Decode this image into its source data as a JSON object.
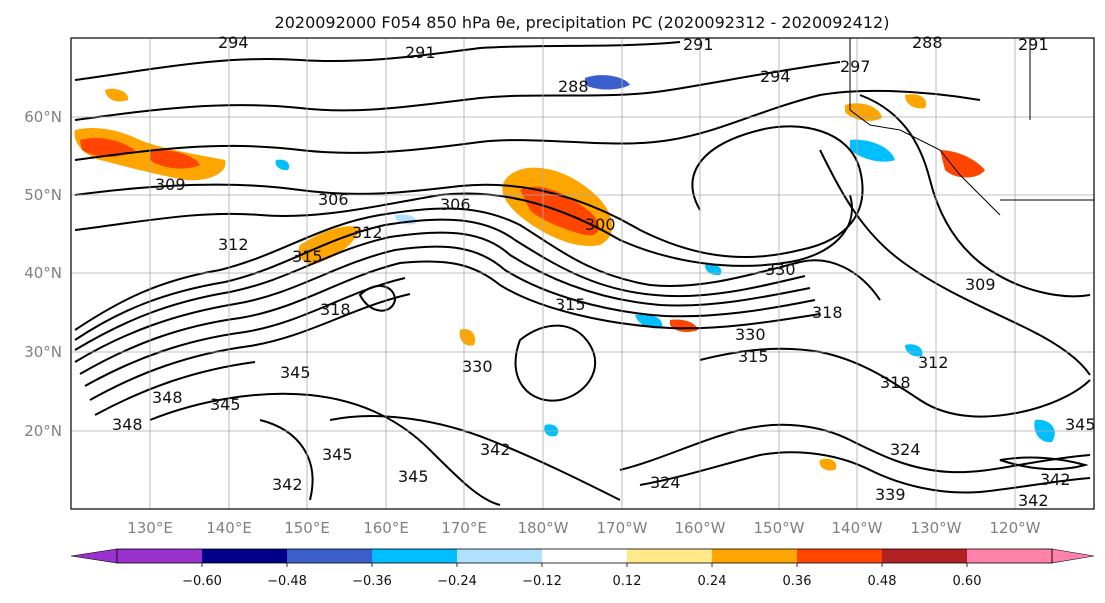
{
  "title": "2020092000 F054 850 hPa θe, precipitation PC (2020092312 - 2020092412)",
  "map": {
    "x_ticks": [
      "130°E",
      "140°E",
      "150°E",
      "160°E",
      "170°E",
      "180°W",
      "170°W",
      "160°W",
      "150°W",
      "140°W",
      "130°W",
      "120°W"
    ],
    "y_ticks": [
      "60°N",
      "50°N",
      "40°N",
      "30°N",
      "20°N"
    ],
    "contour_labels": [
      "294",
      "291",
      "291",
      "288",
      "294",
      "297",
      "291",
      "288",
      "306",
      "309",
      "306",
      "312",
      "315",
      "300",
      "309",
      "312",
      "315",
      "330",
      "318",
      "318",
      "330",
      "315",
      "318",
      "312",
      "345",
      "348",
      "345",
      "348",
      "342",
      "345",
      "342",
      "345",
      "324",
      "324",
      "339",
      "342",
      "345",
      "342",
      "330"
    ],
    "grid": true
  },
  "colorbar": {
    "ticks": [
      "−0.60",
      "−0.48",
      "−0.36",
      "−0.24",
      "−0.12",
      "0.12",
      "0.24",
      "0.36",
      "0.48",
      "0.60"
    ],
    "colors": [
      "#9932CC",
      "#00008B",
      "#3A5FCD",
      "#00BFFF",
      "#B0E2FF",
      "#FFFFFF",
      "#FFE98A",
      "#FFA500",
      "#FF4500",
      "#B22222",
      "#FF82AB"
    ]
  }
}
